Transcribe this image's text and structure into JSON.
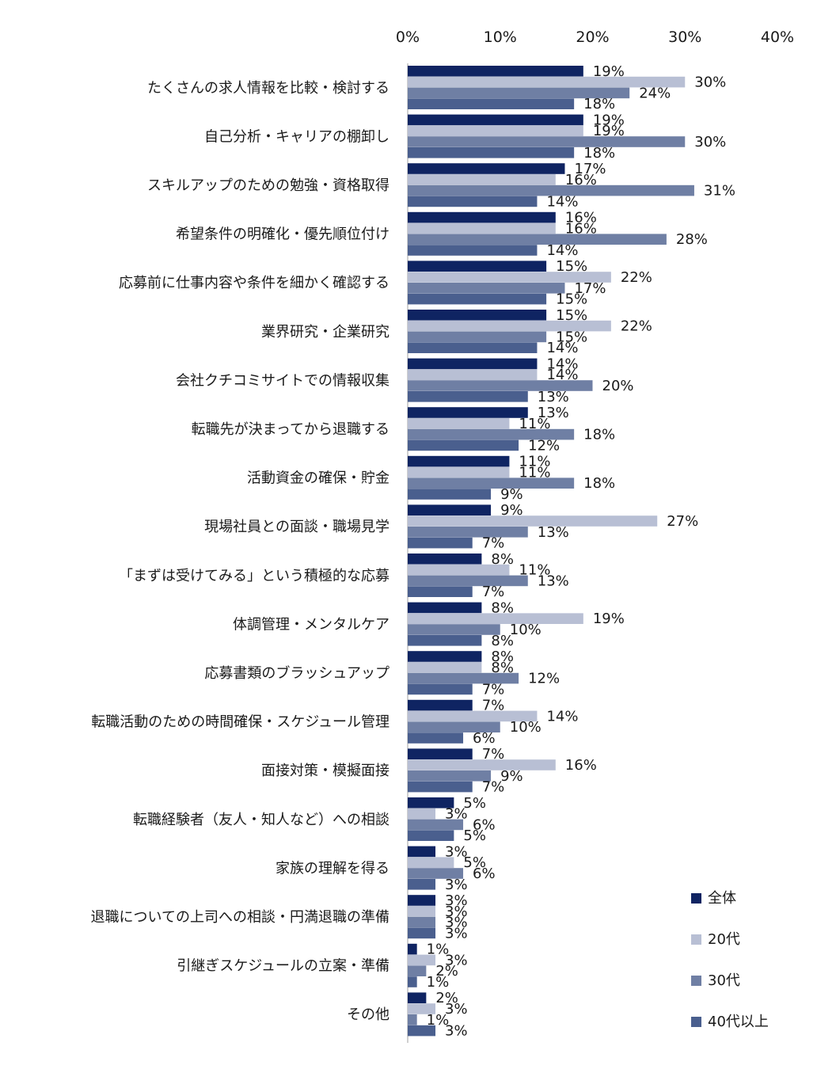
{
  "chart_data": {
    "type": "bar",
    "orientation": "horizontal",
    "title": "",
    "xlabel": "",
    "ylabel": "",
    "xlim": [
      0,
      40
    ],
    "x_ticks": [
      "0%",
      "10%",
      "20%",
      "30%",
      "40%"
    ],
    "x_tick_values": [
      0,
      10,
      20,
      30,
      40
    ],
    "grid": false,
    "legend_position": "bottom-right",
    "unit": "%",
    "categories": [
      "たくさんの求人情報を比較・検討する",
      "自己分析・キャリアの棚卸し",
      "スキルアップのための勉強・資格取得",
      "希望条件の明確化・優先順位付け",
      "応募前に仕事内容や条件を細かく確認する",
      "業界研究・企業研究",
      "会社クチコミサイトでの情報収集",
      "転職先が決まってから退職する",
      "活動資金の確保・貯金",
      "現場社員との面談・職場見学",
      "「まずは受けてみる」という積極的な応募",
      "体調管理・メンタルケア",
      "応募書類のブラッシュアップ",
      "転職活動のための時間確保・スケジュール管理",
      "面接対策・模擬面接",
      "転職経験者（友人・知人など）への相談",
      "家族の理解を得る",
      "退職についての上司への相談・円満退職の準備",
      "引継ぎスケジュールの立案・準備",
      "その他"
    ],
    "series": [
      {
        "name": "全体",
        "color": "#0f2462",
        "values": [
          19,
          19,
          17,
          16,
          15,
          15,
          14,
          13,
          11,
          9,
          8,
          8,
          8,
          7,
          7,
          5,
          3,
          3,
          1,
          2
        ]
      },
      {
        "name": "20代",
        "color": "#b8bfd4",
        "values": [
          30,
          19,
          16,
          16,
          22,
          22,
          14,
          11,
          11,
          27,
          11,
          19,
          8,
          14,
          16,
          3,
          5,
          3,
          3,
          3
        ]
      },
      {
        "name": "30代",
        "color": "#6f7fa4",
        "values": [
          24,
          30,
          31,
          28,
          17,
          15,
          20,
          18,
          18,
          13,
          13,
          10,
          12,
          10,
          9,
          6,
          6,
          3,
          2,
          1
        ]
      },
      {
        "name": "40代以上",
        "color": "#4a5f8e",
        "values": [
          18,
          18,
          14,
          14,
          15,
          14,
          13,
          12,
          9,
          7,
          7,
          8,
          7,
          6,
          7,
          5,
          3,
          3,
          1,
          3
        ]
      }
    ]
  }
}
